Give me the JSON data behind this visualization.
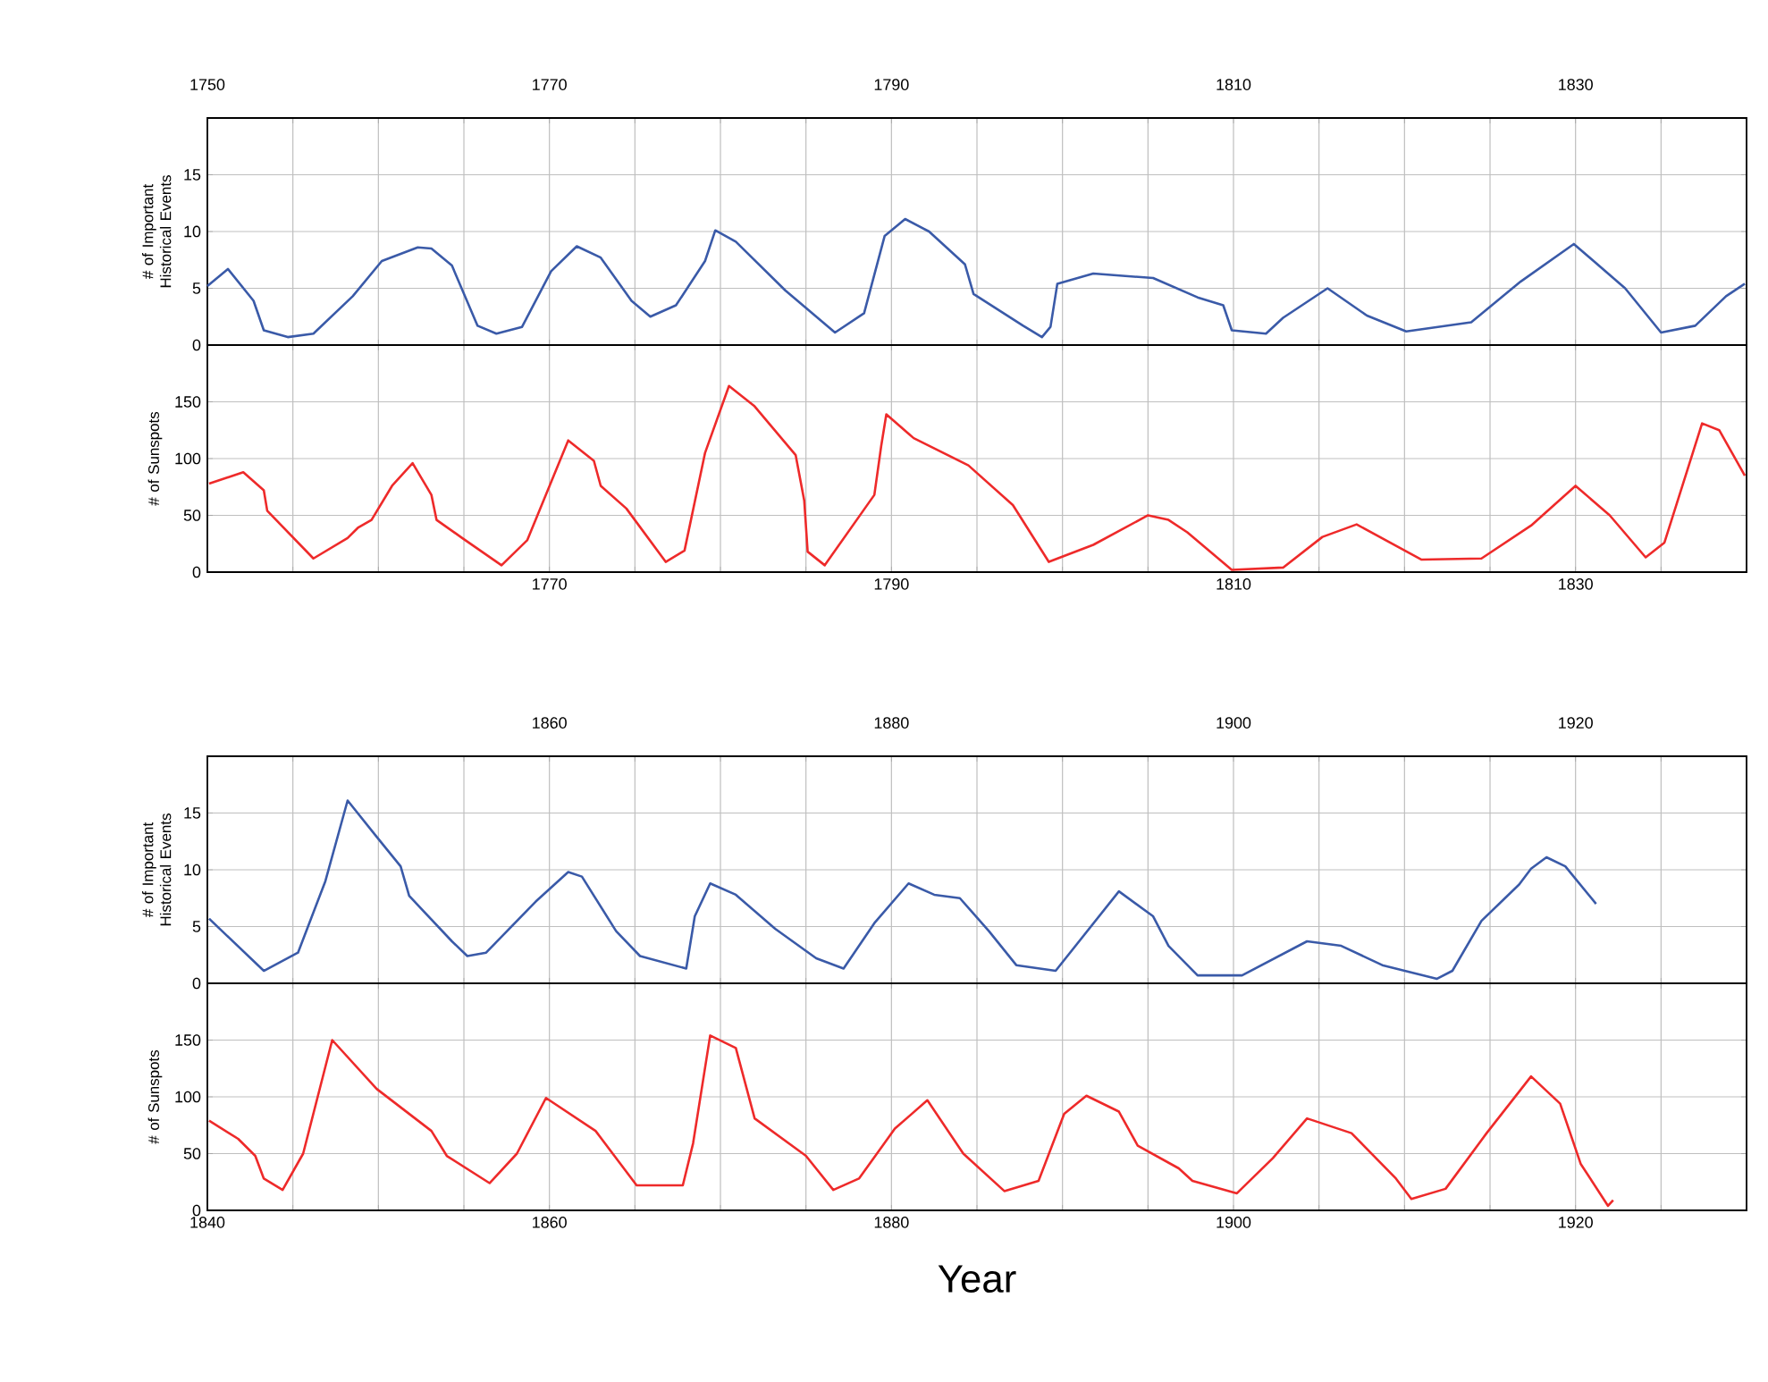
{
  "chart_data": [
    {
      "type": "line",
      "ylabel": "# of Important Historical Events",
      "color": "#3a5aa8",
      "grid": true,
      "ylim": [
        0,
        20
      ],
      "yticks": [
        0,
        5,
        10,
        15
      ],
      "xlim": [
        1750,
        1840
      ],
      "xticks": [
        1750,
        {
          "value": 1755,
          "label": null
        },
        {
          "value": 1760,
          "label": null
        },
        {
          "value": 1765,
          "label": null
        },
        1770,
        {
          "value": 1775,
          "label": null
        },
        {
          "value": 1780,
          "label": null
        },
        {
          "value": 1785,
          "label": null
        },
        1790,
        {
          "value": 1795,
          "label": null
        },
        {
          "value": 1800,
          "label": null
        },
        {
          "value": 1805,
          "label": null
        },
        1810,
        {
          "value": 1815,
          "label": null
        },
        {
          "value": 1820,
          "label": null
        },
        {
          "value": 1825,
          "label": null
        },
        1830,
        {
          "value": 1835,
          "label": null
        },
        {
          "value": 1840,
          "label": null
        }
      ],
      "x": [
        1750,
        1751.2,
        1752.7,
        1753.3,
        1754.7,
        1756.2,
        1758.5,
        1760.2,
        1762.3,
        1763.1,
        1764.3,
        1765.8,
        1766.9,
        1768.4,
        1770.1,
        1771.6,
        1773.0,
        1774.8,
        1775.9,
        1777.4,
        1779.1,
        1779.7,
        1780.9,
        1783.8,
        1786.7,
        1788.4,
        1789.6,
        1790.8,
        1792.2,
        1794.3,
        1794.8,
        1797.7,
        1798.8,
        1799.3,
        1799.7,
        1801.8,
        1805.3,
        1807.9,
        1809.4,
        1809.9,
        1811.9,
        1812.9,
        1815.5,
        1817.8,
        1820.1,
        1823.9,
        1826.8,
        1829.9,
        1832.9,
        1835.0,
        1837.0,
        1838.8,
        1839.9
      ],
      "values": [
        5.2,
        6.7,
        3.9,
        1.3,
        0.7,
        1.0,
        4.3,
        7.4,
        8.6,
        8.5,
        7.0,
        1.7,
        1.0,
        1.6,
        6.5,
        8.7,
        7.7,
        3.9,
        2.5,
        3.5,
        7.4,
        10.1,
        9.1,
        4.8,
        1.1,
        2.8,
        9.6,
        11.1,
        10.0,
        7.1,
        4.5,
        1.7,
        0.7,
        1.6,
        5.4,
        6.3,
        5.9,
        4.2,
        3.5,
        1.3,
        1.0,
        2.4,
        5.0,
        2.6,
        1.2,
        2.0,
        5.6,
        8.9,
        5.0,
        1.1,
        1.7,
        4.3,
        5.4
      ]
    },
    {
      "type": "line",
      "ylabel": "# of Sunspots",
      "color": "#ee2a2a",
      "grid": true,
      "xlim": [
        1750,
        1840
      ],
      "ylim": [
        0,
        200
      ],
      "yticks": [
        0,
        50,
        100,
        150
      ],
      "xticks": [
        {
          "value": 1750,
          "label": null
        },
        {
          "value": 1755,
          "label": null
        },
        {
          "value": 1760,
          "label": null
        },
        {
          "value": 1765,
          "label": null
        },
        1770,
        {
          "value": 1775,
          "label": null
        },
        {
          "value": 1780,
          "label": null
        },
        {
          "value": 1785,
          "label": null
        },
        1790,
        {
          "value": 1795,
          "label": null
        },
        {
          "value": 1800,
          "label": null
        },
        {
          "value": 1805,
          "label": null
        },
        1810,
        {
          "value": 1815,
          "label": null
        },
        {
          "value": 1820,
          "label": null
        },
        {
          "value": 1825,
          "label": null
        },
        1830,
        {
          "value": 1835,
          "label": null
        },
        {
          "value": 1840,
          "label": null
        }
      ],
      "x": [
        1750.1,
        1752.1,
        1753.3,
        1753.5,
        1756.2,
        1758.2,
        1758.8,
        1759.6,
        1760.8,
        1762.0,
        1763.1,
        1763.4,
        1764.9,
        1767.2,
        1768.7,
        1771.1,
        1772.6,
        1773.0,
        1774.5,
        1776.8,
        1777.9,
        1779.1,
        1780.5,
        1782.0,
        1784.4,
        1784.9,
        1785.1,
        1786.1,
        1789.0,
        1789.4,
        1789.7,
        1791.3,
        1794.5,
        1797.1,
        1799.2,
        1801.8,
        1805.0,
        1806.2,
        1807.3,
        1809.9,
        1812.9,
        1815.2,
        1817.2,
        1821.0,
        1824.5,
        1827.4,
        1830.0,
        1832.0,
        1834.1,
        1835.2,
        1837.4,
        1838.4,
        1839.9
      ],
      "values": [
        78,
        88,
        72,
        54,
        12,
        30,
        39,
        46,
        76,
        96,
        68,
        46,
        30,
        6,
        28,
        116,
        98,
        76,
        56,
        9,
        19,
        105,
        164,
        146,
        103,
        63,
        18,
        6,
        68,
        111,
        139,
        118,
        94,
        59,
        9,
        24,
        50,
        46,
        35,
        2,
        4,
        31,
        42,
        11,
        12,
        41,
        76,
        50,
        13,
        26,
        131,
        125,
        85
      ]
    },
    {
      "type": "line",
      "ylabel": "# of Important Historical Events",
      "color": "#3a5aa8",
      "grid": true,
      "ylim": [
        0,
        20
      ],
      "yticks": [
        0,
        5,
        10,
        15
      ],
      "xlim": [
        1840,
        1930
      ],
      "xticks": [
        {
          "value": 1840,
          "label": null
        },
        {
          "value": 1845,
          "label": null
        },
        {
          "value": 1850,
          "label": null
        },
        {
          "value": 1855,
          "label": null
        },
        1860,
        {
          "value": 1865,
          "label": null
        },
        {
          "value": 1870,
          "label": null
        },
        {
          "value": 1875,
          "label": null
        },
        1880,
        {
          "value": 1885,
          "label": null
        },
        {
          "value": 1890,
          "label": null
        },
        {
          "value": 1895,
          "label": null
        },
        1900,
        {
          "value": 1905,
          "label": null
        },
        {
          "value": 1910,
          "label": null
        },
        {
          "value": 1915,
          "label": null
        },
        1920,
        {
          "value": 1925,
          "label": null
        },
        {
          "value": 1930,
          "label": null
        }
      ],
      "x": [
        1840.1,
        1843.3,
        1845.3,
        1846.9,
        1848.2,
        1849.9,
        1851.3,
        1851.8,
        1854.3,
        1855.2,
        1856.3,
        1859.2,
        1861.1,
        1861.9,
        1863.9,
        1865.3,
        1868.0,
        1868.5,
        1869.4,
        1870.9,
        1873.2,
        1875.6,
        1877.2,
        1879.0,
        1881.0,
        1882.5,
        1884.0,
        1885.7,
        1887.3,
        1889.6,
        1893.3,
        1895.3,
        1896.2,
        1897.9,
        1900.5,
        1904.3,
        1906.3,
        1908.7,
        1911.9,
        1912.8,
        1914.5,
        1916.7,
        1917.4,
        1918.3,
        1919.4,
        1921.2
      ],
      "values": [
        5.7,
        1.1,
        2.7,
        9.0,
        16.1,
        12.9,
        10.3,
        7.7,
        3.7,
        2.4,
        2.7,
        7.2,
        9.8,
        9.4,
        4.6,
        2.4,
        1.3,
        5.9,
        8.8,
        7.8,
        4.8,
        2.2,
        1.3,
        5.3,
        8.8,
        7.8,
        7.5,
        4.6,
        1.6,
        1.1,
        8.1,
        5.9,
        3.3,
        0.7,
        0.7,
        3.7,
        3.3,
        1.6,
        0.4,
        1.1,
        5.5,
        8.7,
        10.1,
        11.1,
        10.3,
        7.0
      ]
    },
    {
      "type": "line",
      "ylabel": "# of Sunspots",
      "xlabel": "Year",
      "color": "#ee2a2a",
      "grid": true,
      "xlim": [
        1840,
        1930
      ],
      "ylim": [
        0,
        200
      ],
      "yticks": [
        0,
        50,
        100,
        150
      ],
      "xticks": [
        1840,
        {
          "value": 1845,
          "label": null
        },
        {
          "value": 1850,
          "label": null
        },
        {
          "value": 1855,
          "label": null
        },
        1860,
        {
          "value": 1865,
          "label": null
        },
        {
          "value": 1870,
          "label": null
        },
        {
          "value": 1875,
          "label": null
        },
        1880,
        {
          "value": 1885,
          "label": null
        },
        {
          "value": 1890,
          "label": null
        },
        {
          "value": 1895,
          "label": null
        },
        1900,
        {
          "value": 1905,
          "label": null
        },
        {
          "value": 1910,
          "label": null
        },
        {
          "value": 1915,
          "label": null
        },
        1920,
        {
          "value": 1925,
          "label": null
        },
        {
          "value": 1930,
          "label": null
        }
      ],
      "x": [
        1840.1,
        1841.8,
        1842.8,
        1843.3,
        1844.4,
        1845.6,
        1847.3,
        1849.9,
        1853.1,
        1854.0,
        1856.5,
        1858.1,
        1859.8,
        1862.7,
        1865.1,
        1867.8,
        1868.4,
        1869.4,
        1870.9,
        1872.0,
        1875.0,
        1876.6,
        1878.1,
        1880.2,
        1882.1,
        1884.2,
        1886.6,
        1888.6,
        1890.1,
        1891.4,
        1893.3,
        1894.4,
        1896.8,
        1897.6,
        1900.2,
        1902.3,
        1904.3,
        1906.9,
        1909.5,
        1910.4,
        1912.4,
        1914.8,
        1917.4,
        1919.1,
        1920.3,
        1921.9,
        1922.2
      ],
      "values": [
        79,
        63,
        48,
        28,
        18,
        50,
        150,
        107,
        70,
        48,
        24,
        50,
        99,
        70,
        22,
        22,
        59,
        154,
        143,
        81,
        48,
        18,
        28,
        72,
        97,
        50,
        17,
        26,
        85,
        101,
        87,
        57,
        37,
        26,
        15,
        46,
        81,
        68,
        28,
        10,
        19,
        68,
        118,
        94,
        41,
        4,
        9
      ]
    }
  ]
}
